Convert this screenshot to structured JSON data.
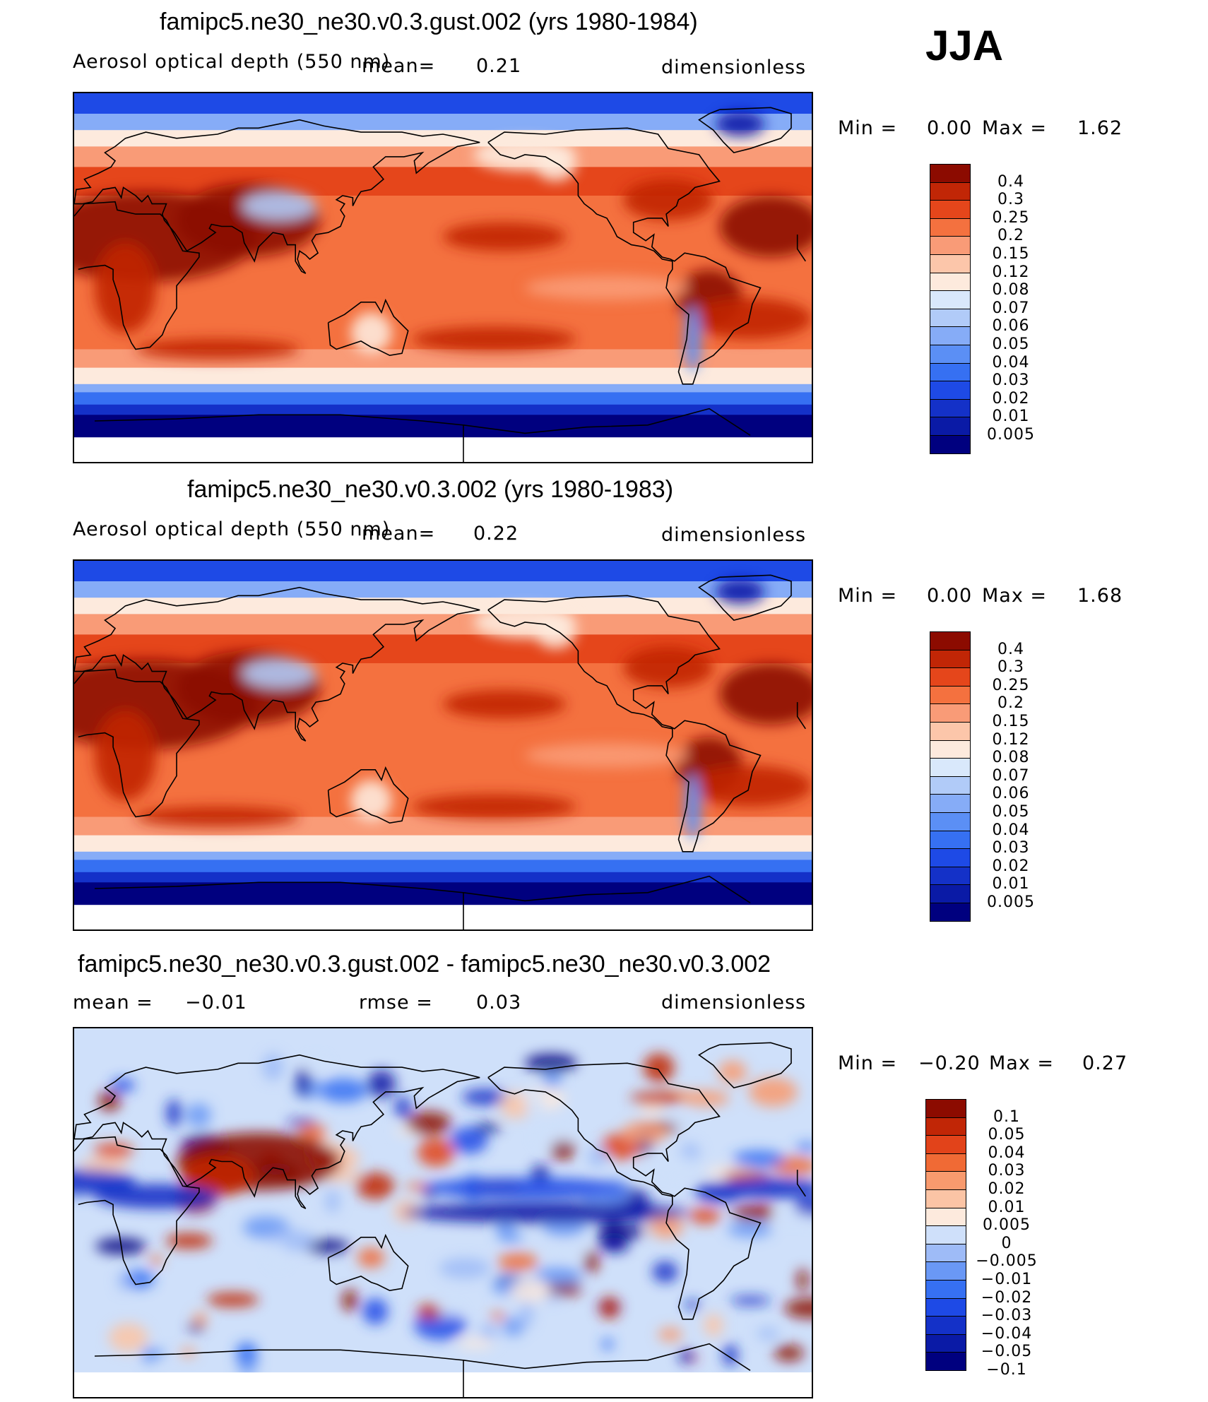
{
  "season": "JJA",
  "colors": {
    "aod": [
      "#00007f",
      "#0a1aa6",
      "#1431c8",
      "#1e4ae6",
      "#3670f2",
      "#5b8ff5",
      "#86acf7",
      "#b1cbf8",
      "#d9e8fb",
      "#fdeadd",
      "#fcc6aa",
      "#f99b77",
      "#f4713f",
      "#e5461b",
      "#c12606",
      "#8c0b00"
    ],
    "diff": [
      "#00007f",
      "#0a1aa6",
      "#1431c8",
      "#1e4ae6",
      "#3670f2",
      "#6a98f5",
      "#9ebbf7",
      "#cfe0fa",
      "#fdeadd",
      "#fbc4a5",
      "#f89a6e",
      "#f06a35",
      "#e2431a",
      "#c12606",
      "#8c0b00"
    ]
  },
  "panels": [
    {
      "id": "panel-1",
      "title": "famipc5.ne30_ne30.v0.3.gust.002 (yrs 1980-1984)",
      "variable": "Aerosol optical depth (550 nm)",
      "mean_text": "mean=",
      "mean_value": "0.21",
      "units": "dimensionless",
      "min_label": "Min =",
      "min_value": "0.00",
      "max_label": "Max =",
      "max_value": "1.62",
      "colorbar_levels": [
        "0.4",
        "0.3",
        "0.25",
        "0.2",
        "0.15",
        "0.12",
        "0.08",
        "0.07",
        "0.06",
        "0.05",
        "0.04",
        "0.03",
        "0.02",
        "0.01",
        "0.005"
      ]
    },
    {
      "id": "panel-2",
      "title": "famipc5.ne30_ne30.v0.3.002 (yrs 1980-1983)",
      "variable": "Aerosol optical depth (550 nm)",
      "mean_text": "mean=",
      "mean_value": "0.22",
      "units": "dimensionless",
      "min_label": "Min =",
      "min_value": "0.00",
      "max_label": "Max =",
      "max_value": "1.68",
      "colorbar_levels": [
        "0.4",
        "0.3",
        "0.25",
        "0.2",
        "0.15",
        "0.12",
        "0.08",
        "0.07",
        "0.06",
        "0.05",
        "0.04",
        "0.03",
        "0.02",
        "0.01",
        "0.005"
      ]
    },
    {
      "id": "panel-3",
      "title": "famipc5.ne30_ne30.v0.3.gust.002 - famipc5.ne30_ne30.v0.3.002",
      "mean_label": "mean =",
      "mean_value": "−0.01",
      "rmse_label": "rmse =",
      "rmse_value": "0.03",
      "units": "dimensionless",
      "min_label": "Min =",
      "min_value": "−0.20",
      "max_label": "Max =",
      "max_value": "0.27",
      "colorbar_levels": [
        "0.1",
        "0.05",
        "0.04",
        "0.03",
        "0.02",
        "0.01",
        "0.005",
        "0",
        "−0.005",
        "−0.01",
        "−0.02",
        "−0.03",
        "−0.04",
        "−0.05",
        "−0.1"
      ]
    }
  ],
  "chart_data": [
    {
      "type": "heatmap",
      "title": "famipc5.ne30_ne30.v0.3.gust.002 (yrs 1980-1984)",
      "variable": "Aerosol optical depth (550 nm)",
      "units": "dimensionless",
      "mean": 0.21,
      "min": 0.0,
      "max": 1.62,
      "contour_levels": [
        0.005,
        0.01,
        0.02,
        0.03,
        0.04,
        0.05,
        0.06,
        0.07,
        0.08,
        0.12,
        0.15,
        0.2,
        0.25,
        0.3,
        0.4
      ],
      "colormap": "blue-white-red",
      "projection": "cylindrical equidistant, Pacific-centered"
    },
    {
      "type": "heatmap",
      "title": "famipc5.ne30_ne30.v0.3.002 (yrs 1980-1983)",
      "variable": "Aerosol optical depth (550 nm)",
      "units": "dimensionless",
      "mean": 0.22,
      "min": 0.0,
      "max": 1.68,
      "contour_levels": [
        0.005,
        0.01,
        0.02,
        0.03,
        0.04,
        0.05,
        0.06,
        0.07,
        0.08,
        0.12,
        0.15,
        0.2,
        0.25,
        0.3,
        0.4
      ],
      "colormap": "blue-white-red",
      "projection": "cylindrical equidistant, Pacific-centered"
    },
    {
      "type": "heatmap",
      "title": "famipc5.ne30_ne30.v0.3.gust.002 - famipc5.ne30_ne30.v0.3.002",
      "units": "dimensionless",
      "mean": -0.01,
      "rmse": 0.03,
      "min": -0.2,
      "max": 0.27,
      "contour_levels": [
        -0.1,
        -0.05,
        -0.04,
        -0.03,
        -0.02,
        -0.01,
        -0.005,
        0,
        0.005,
        0.01,
        0.02,
        0.03,
        0.04,
        0.05,
        0.1
      ],
      "colormap": "blue-white-red diverging",
      "projection": "cylindrical equidistant, Pacific-centered"
    }
  ]
}
